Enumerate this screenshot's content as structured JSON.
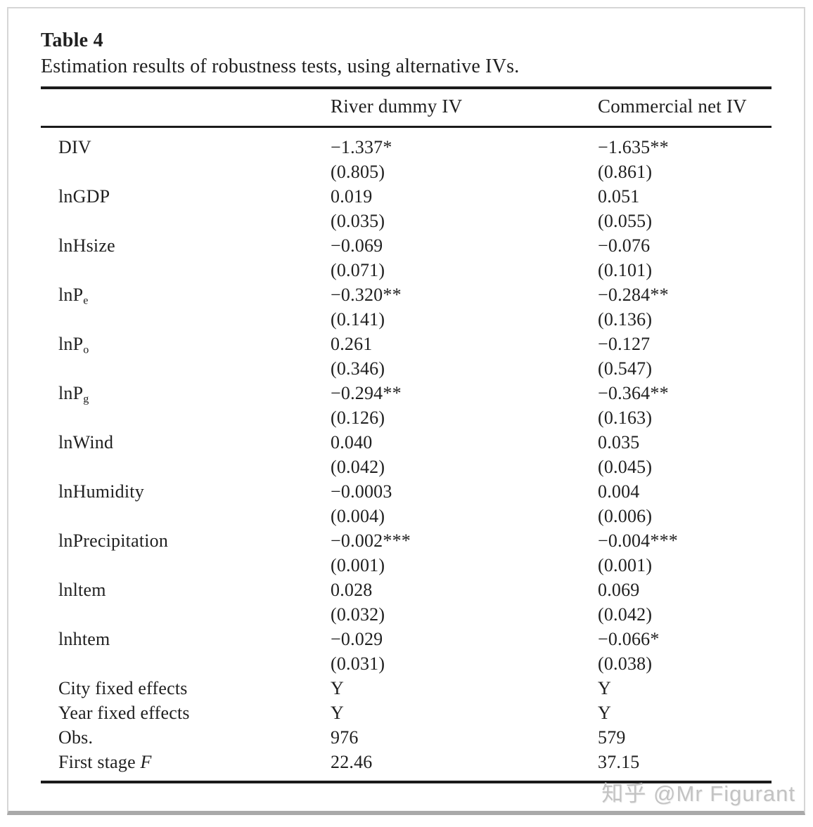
{
  "page": {
    "title": "Table 4",
    "subtitle": "Estimation results of robustness tests, using alternative IVs.",
    "watermark": "知乎 @Mr Figurant"
  },
  "table": {
    "col1_header": "River dummy IV",
    "col2_header": "Commercial net IV",
    "variables": [
      {
        "label": "DIV",
        "sub": "",
        "coef1": "−1.337*",
        "se1": "(0.805)",
        "coef2": "−1.635**",
        "se2": "(0.861)"
      },
      {
        "label": "lnGDP",
        "sub": "",
        "coef1": "0.019",
        "se1": "(0.035)",
        "coef2": "0.051",
        "se2": "(0.055)"
      },
      {
        "label": "lnHsize",
        "sub": "",
        "coef1": "−0.069",
        "se1": "(0.071)",
        "coef2": "−0.076",
        "se2": "(0.101)"
      },
      {
        "label": "lnP",
        "sub": "e",
        "coef1": "−0.320**",
        "se1": "(0.141)",
        "coef2": "−0.284**",
        "se2": "(0.136)"
      },
      {
        "label": "lnP",
        "sub": "o",
        "coef1": "0.261",
        "se1": "(0.346)",
        "coef2": "−0.127",
        "se2": "(0.547)"
      },
      {
        "label": "lnP",
        "sub": "g",
        "coef1": "−0.294**",
        "se1": "(0.126)",
        "coef2": "−0.364**",
        "se2": "(0.163)"
      },
      {
        "label": "lnWind",
        "sub": "",
        "coef1": "0.040",
        "se1": "(0.042)",
        "coef2": "0.035",
        "se2": "(0.045)"
      },
      {
        "label": "lnHumidity",
        "sub": "",
        "coef1": "−0.0003",
        "se1": "(0.004)",
        "coef2": "0.004",
        "se2": "(0.006)"
      },
      {
        "label": "lnPrecipitation",
        "sub": "",
        "coef1": "−0.002***",
        "se1": "(0.001)",
        "coef2": "−0.004***",
        "se2": "(0.001)"
      },
      {
        "label": "lnltem",
        "sub": "",
        "coef1": "0.028",
        "se1": "(0.032)",
        "coef2": "0.069",
        "se2": "(0.042)"
      },
      {
        "label": "lnhtem",
        "sub": "",
        "coef1": "−0.029",
        "se1": "(0.031)",
        "coef2": "−0.066*",
        "se2": "(0.038)"
      }
    ],
    "summary": [
      {
        "label": "City fixed effects",
        "italic": "",
        "v1": "Y",
        "v2": "Y"
      },
      {
        "label": "Year fixed effects",
        "italic": "",
        "v1": "Y",
        "v2": "Y"
      },
      {
        "label": "Obs.",
        "italic": "",
        "v1": "976",
        "v2": "579"
      },
      {
        "label": "First stage ",
        "italic": "F",
        "v1": "22.46",
        "v2": "37.15"
      }
    ]
  }
}
